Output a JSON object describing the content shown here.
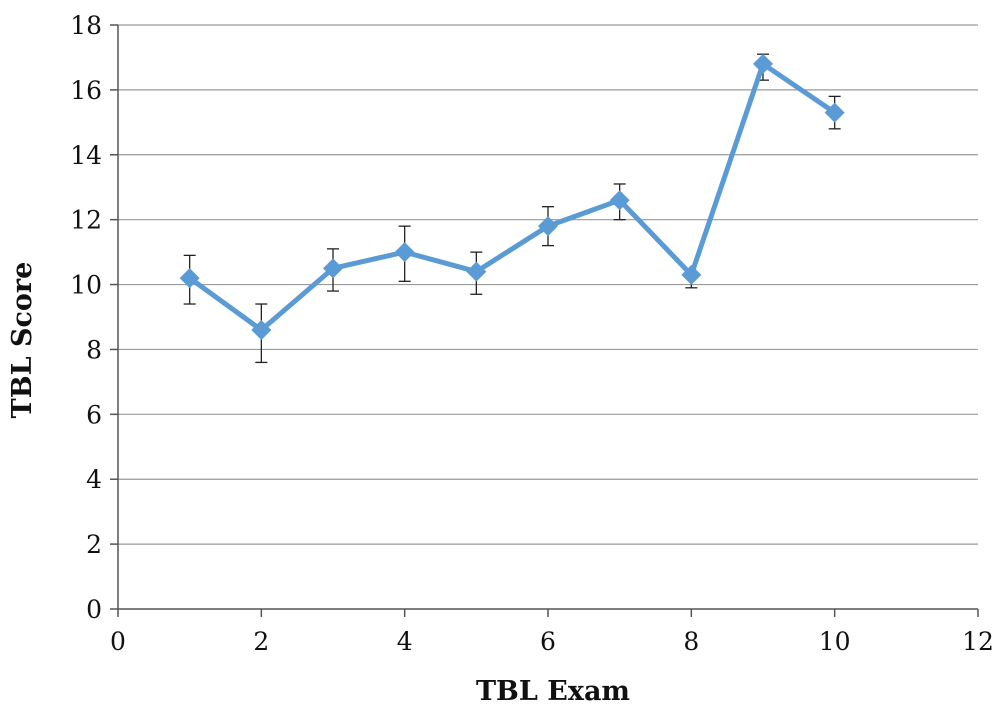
{
  "chart_data": {
    "type": "scatter",
    "title": "",
    "xlabel": "TBL Exam",
    "ylabel": "TBL Score",
    "xlim": [
      0,
      12
    ],
    "ylim": [
      0,
      18
    ],
    "x_ticks": [
      0,
      2,
      4,
      6,
      8,
      10,
      12
    ],
    "y_ticks": [
      0,
      2,
      4,
      6,
      8,
      10,
      12,
      14,
      16,
      18
    ],
    "grid": "horizontal",
    "legend": "none",
    "series": [
      {
        "color": "#5b9bd5",
        "marker": "diamond",
        "line": true,
        "x": [
          1,
          2,
          3,
          4,
          5,
          6,
          7,
          8,
          9,
          10
        ],
        "y": [
          10.2,
          8.6,
          10.5,
          11.0,
          10.4,
          11.8,
          12.6,
          10.3,
          16.8,
          15.3
        ],
        "error_low": [
          9.4,
          7.6,
          9.8,
          10.1,
          9.7,
          11.2,
          12.0,
          9.9,
          16.3,
          14.8
        ],
        "error_high": [
          10.9,
          9.4,
          11.1,
          11.8,
          11.0,
          12.4,
          13.1,
          10.3,
          17.1,
          15.8
        ]
      }
    ]
  }
}
